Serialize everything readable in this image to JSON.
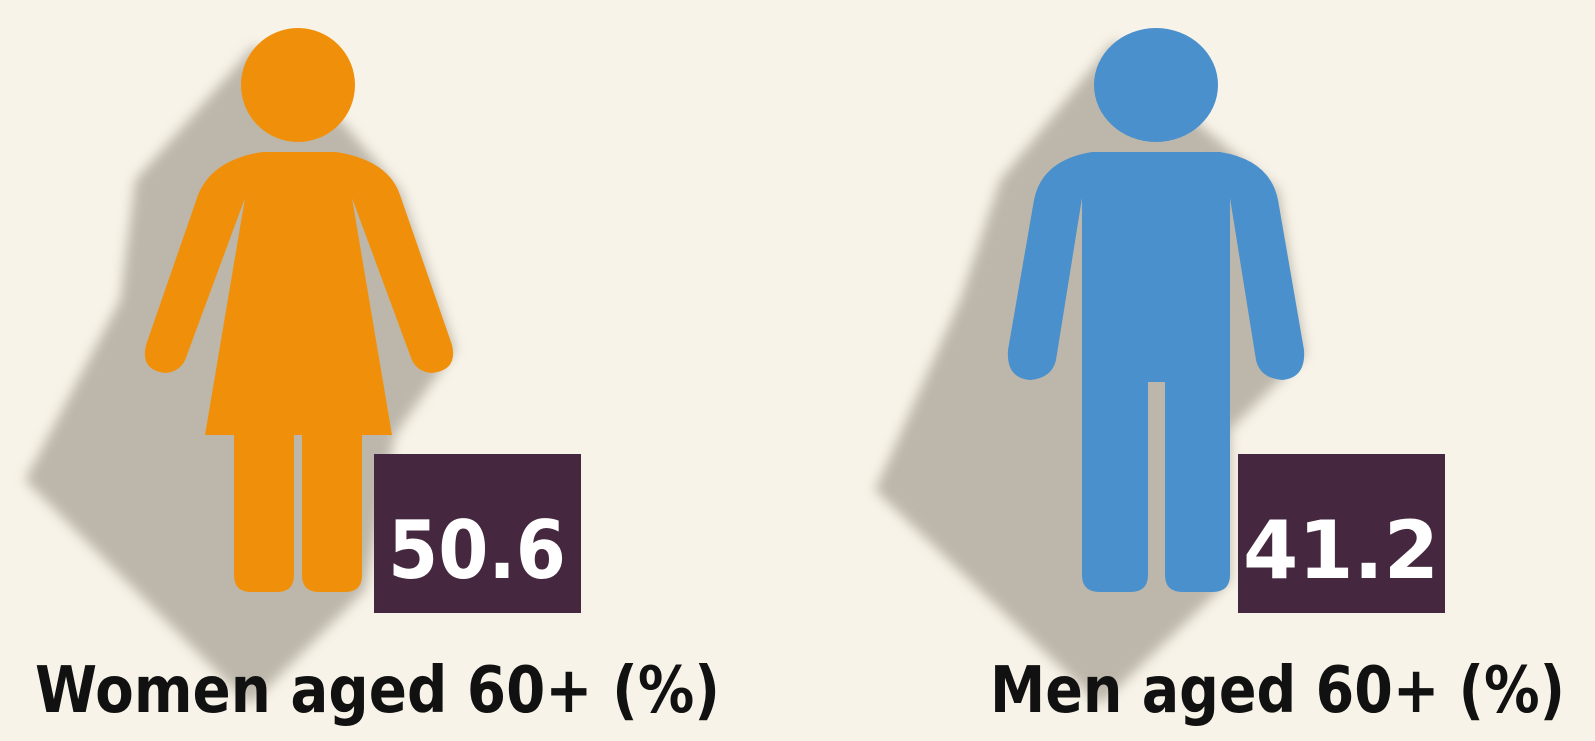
{
  "panels": [
    {
      "label": "Women aged 60+ (%)",
      "value": 50.6
    },
    {
      "label": "Men aged 60+ (%)",
      "value": 41.2
    }
  ]
}
